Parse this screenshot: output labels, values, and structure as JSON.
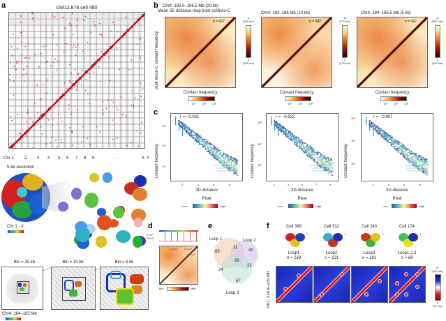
{
  "panels": {
    "a": {
      "label": "a",
      "title": "GM12,878 cell 480",
      "sex_symbols": "♂ ♀",
      "chromosomes": [
        "Chr 1",
        "2",
        "3",
        "4",
        "5",
        "6",
        "7",
        "8",
        "9",
        "···",
        "X",
        "Y"
      ],
      "resolution_label": "5-kb resolution",
      "colorbar_label": "Chr 1 - X",
      "bins": [
        "Bin = 20 kb",
        "Bin = 10 kb",
        "Bin = 5 kb"
      ],
      "region_label": "Chr4: 184–185 Mb"
    },
    "b": {
      "label": "b",
      "subtitle": "Mean 3D distance map from scMicro-C",
      "ylabel": "Bulk Micro-C contact frequency",
      "maps": [
        {
          "title": "Chr4: 180.5–186.5 Mb (20 kb)",
          "n": "n = 627",
          "cbar_top": "8",
          "cbar_top_nm": "(800 nm)",
          "cbar_bottom": "2",
          "cbar_bottom_nm": "(200 nm)"
        },
        {
          "title": "Chr4: 183–186 Mb (10 kb)",
          "n": "n = 582",
          "cbar_top": "8",
          "cbar_top_nm": "(700 nm)",
          "cbar_bottom": "2",
          "cbar_bottom_nm": "(175 nm)"
        },
        {
          "title": "Chr4: 184–185.5 Mb (5 kb)",
          "n": "n = 412",
          "cbar_top": "8",
          "cbar_top_nm": "(550 nm)",
          "cbar_bottom": "2",
          "cbar_bottom_nm": "(140 nm)"
        }
      ],
      "contact_label": "Contact frequency",
      "contact_ticks": [
        "10⁰",
        "10¹",
        "10²"
      ]
    },
    "c": {
      "label": "c",
      "ylabel": "Contact frequency",
      "xlabel": "3D distance",
      "yticks": [
        "10³",
        "10²",
        "10¹"
      ],
      "plots": [
        {
          "r": "r = −0.931",
          "xticks": [
            "2",
            "4",
            "6",
            "8"
          ]
        },
        {
          "r": "r = −0.922",
          "xticks": [
            "1",
            "3",
            "5",
            "7",
            "9"
          ]
        },
        {
          "r": "r = −0.907",
          "xticks": [
            "2",
            "4",
            "6",
            "8"
          ]
        }
      ],
      "legend_title": "Pixel",
      "legend_low": "Low",
      "legend_high": "High"
    },
    "d": {
      "label": "d",
      "tracks": [
        "CTCF",
        "RAD21"
      ],
      "loops": [
        "Loop1",
        "Loop2",
        "Loop3"
      ],
      "legend_min": "Min",
      "legend_max": "Max"
    },
    "e": {
      "label": "e",
      "sets": [
        "Loop 1",
        "Loop 2",
        "Loop 3"
      ],
      "regions": {
        "only1": "65",
        "only2": "30",
        "only3": "67",
        "1and2": "11",
        "1and3": "24",
        "2and3": "21",
        "all": "69"
      },
      "colors": {
        "loop1": "#f7c9a8",
        "loop2": "#d5c3ef",
        "loop3": "#bfe3d6"
      }
    },
    "f": {
      "label": "f",
      "cells": [
        {
          "title": "Cell 399",
          "loop": "Loop1",
          "n": "n = 169"
        },
        {
          "title": "Cell 312",
          "loop": "Loop2",
          "n": "n = 131"
        },
        {
          "title": "Cell 240",
          "loop": "Loop3",
          "n": "n = 181"
        },
        {
          "title": "Cell 174",
          "loop": "Loop1,2,3",
          "n": "n = 69"
        }
      ],
      "female_symbol": "♀",
      "ylabel": "chr1: 224.4–225 Mb",
      "cbar_top": "8",
      "cbar_top_nm": "(410 nm)",
      "cbar_bottom": "1",
      "cbar_bottom_nm": "(70 nm)"
    }
  }
}
